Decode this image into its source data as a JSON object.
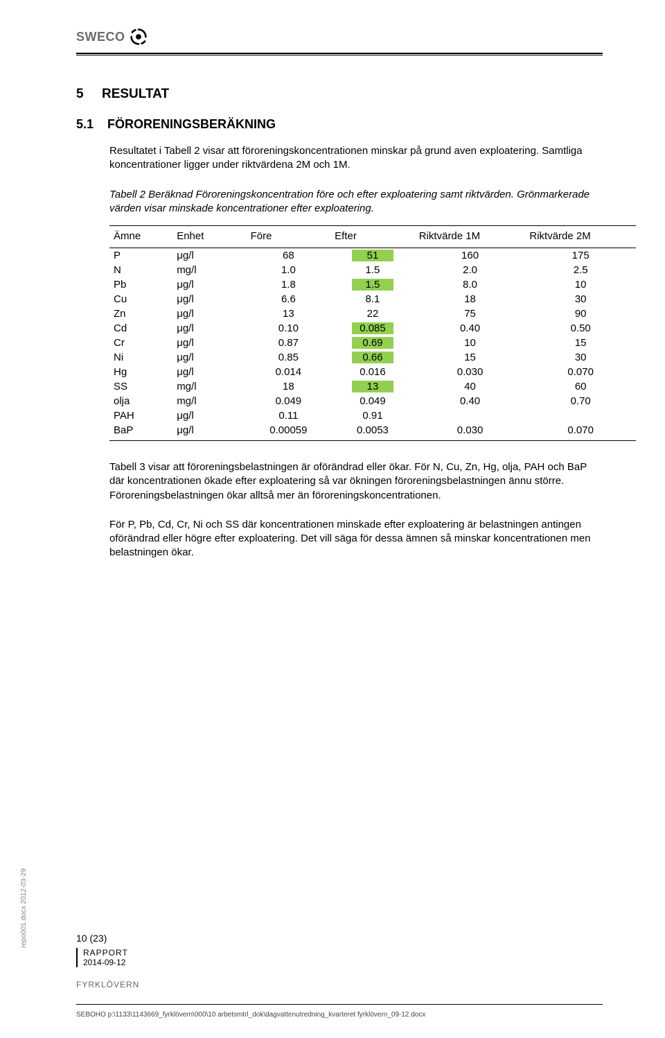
{
  "logo_text": "SWECO",
  "section_number": "5",
  "section_title": "RESULTAT",
  "subsection_number": "5.1",
  "subsection_title": "FÖRORENINGSBERÄKNING",
  "intro_para": "Resultatet i Tabell 2 visar att föroreningskoncentrationen minskar på grund aven exploatering. Samtliga koncentrationer ligger under riktvärdena 2M och 1M.",
  "table2_caption": "Tabell 2 Beräknad Föroreningskoncentration före och efter exploatering samt riktvärden. Grönmarkerade värden visar minskade koncentrationer efter exploatering.",
  "table": {
    "columns": [
      "Ämne",
      "Enhet",
      "Före",
      "Efter",
      "Riktvärde 1M",
      "Riktvärde 2M"
    ],
    "col_widths": [
      "12%",
      "14%",
      "16%",
      "16%",
      "21%",
      "21%"
    ],
    "highlight_color": "#92d050",
    "rows": [
      {
        "amn": "P",
        "enh": "μg/l",
        "fore": "68",
        "efter": "51",
        "hl": true,
        "r1": "160",
        "r2": "175"
      },
      {
        "amn": "N",
        "enh": "mg/l",
        "fore": "1.0",
        "efter": "1.5",
        "hl": false,
        "r1": "2.0",
        "r2": "2.5"
      },
      {
        "amn": "Pb",
        "enh": "μg/l",
        "fore": "1.8",
        "efter": "1.5",
        "hl": true,
        "r1": "8.0",
        "r2": "10"
      },
      {
        "amn": "Cu",
        "enh": "μg/l",
        "fore": "6.6",
        "efter": "8.1",
        "hl": false,
        "r1": "18",
        "r2": "30"
      },
      {
        "amn": "Zn",
        "enh": "μg/l",
        "fore": "13",
        "efter": "22",
        "hl": false,
        "r1": "75",
        "r2": "90"
      },
      {
        "amn": "Cd",
        "enh": "μg/l",
        "fore": "0.10",
        "efter": "0.085",
        "hl": true,
        "r1": "0.40",
        "r2": "0.50"
      },
      {
        "amn": "Cr",
        "enh": "μg/l",
        "fore": "0.87",
        "efter": "0.69",
        "hl": true,
        "r1": "10",
        "r2": "15"
      },
      {
        "amn": "Ni",
        "enh": "μg/l",
        "fore": "0.85",
        "efter": "0.66",
        "hl": true,
        "r1": "15",
        "r2": "30"
      },
      {
        "amn": "Hg",
        "enh": "μg/l",
        "fore": "0.014",
        "efter": "0.016",
        "hl": false,
        "r1": "0.030",
        "r2": "0.070"
      },
      {
        "amn": "SS",
        "enh": "mg/l",
        "fore": "18",
        "efter": "13",
        "hl": true,
        "r1": "40",
        "r2": "60"
      },
      {
        "amn": "olja",
        "enh": "mg/l",
        "fore": "0.049",
        "efter": "0.049",
        "hl": false,
        "r1": "0.40",
        "r2": "0.70"
      },
      {
        "amn": "PAH",
        "enh": "μg/l",
        "fore": "0.11",
        "efter": "0.91",
        "hl": false,
        "r1": "",
        "r2": ""
      },
      {
        "amn": "BaP",
        "enh": "μg/l",
        "fore": "0.00059",
        "efter": "0.0053",
        "hl": false,
        "r1": "0.030",
        "r2": "0.070"
      }
    ]
  },
  "para3": "Tabell 3 visar att föroreningsbelastningen är oförändrad eller ökar. För N, Cu, Zn, Hg, olja, PAH och BaP där koncentrationen ökade efter exploatering så var ökningen föroreningsbelastningen ännu större. Föroreningsbelastningen ökar alltså mer än föroreningskoncentrationen.",
  "para4": "För P, Pb, Cd, Cr, Ni och SS  där koncentrationen minskade efter exploatering är belastningen antingen oförändrad eller högre efter exploatering. Det vill säga för dessa ämnen så minskar koncentrationen men belastningen ökar.",
  "footer": {
    "page": "10 (23)",
    "doc_type": "RAPPORT",
    "date": "2014-09-12",
    "project": "FYRKLÖVERN",
    "side_text": "repo001.docx 2012-03-29",
    "path": "SEBOHO p:\\1133\\1143669_fyrklövern\\000\\10 arbetsmtrl_dok\\dagvattenutredning_kvarteret fyrklövern_09-12.docx"
  }
}
